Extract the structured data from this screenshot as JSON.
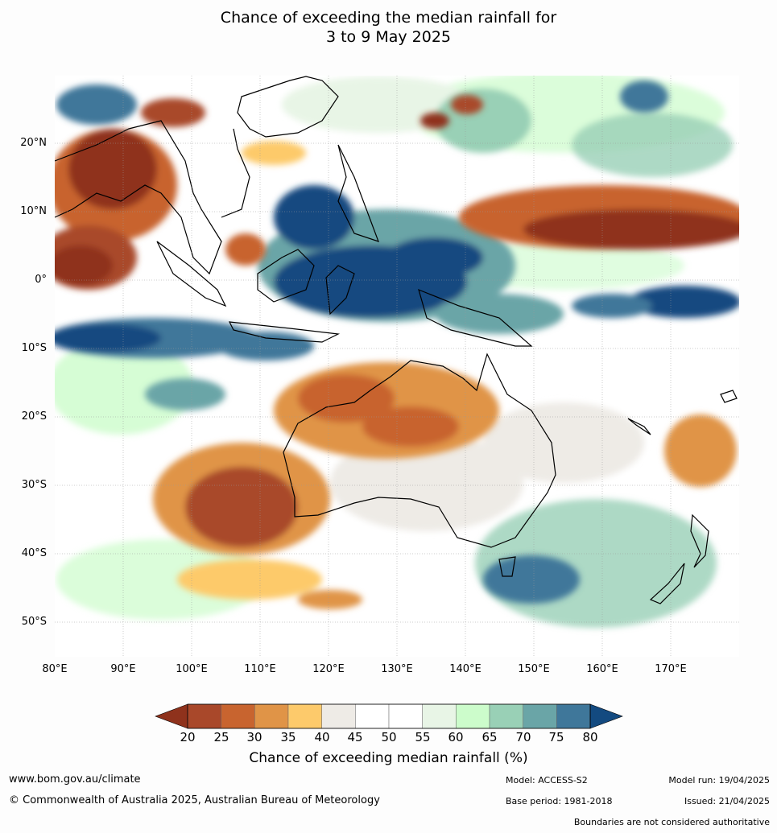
{
  "title_line1": "Chance of exceeding the median rainfall for",
  "title_line2": "3 to 9 May 2025",
  "lat_labels": [
    "20°N",
    "10°N",
    "0°",
    "10°S",
    "20°S",
    "30°S",
    "40°S",
    "50°S"
  ],
  "lon_labels": [
    "80°E",
    "90°E",
    "100°E",
    "110°E",
    "120°E",
    "130°E",
    "140°E",
    "150°E",
    "160°E",
    "170°E"
  ],
  "colorbar": {
    "ticks": [
      "20",
      "25",
      "30",
      "35",
      "40",
      "45",
      "50",
      "55",
      "60",
      "65",
      "70",
      "75",
      "80"
    ],
    "colors": [
      "#8f321c",
      "#a9482a",
      "#c8642f",
      "#e09447",
      "#fdca6b",
      "#eeebe6",
      "#ffffff",
      "#ffffff",
      "#e8f5e6",
      "#ccfccb",
      "#99d0b6",
      "#6aa5a7",
      "#3f779a",
      "#134a80"
    ],
    "title": "Chance of exceeding median rainfall (%)"
  },
  "footer": {
    "website": "www.bom.gov.au/climate",
    "copyright": "© Commonwealth of Australia 2025, Australian Bureau of Meteorology",
    "model": "Model: ACCESS-S2",
    "base_period": "Base period: 1981-2018",
    "model_run": "Model run: 19/04/2025",
    "issued": "Issued: 21/04/2025",
    "disclaimer": "Boundaries are not considered authoritative"
  }
}
